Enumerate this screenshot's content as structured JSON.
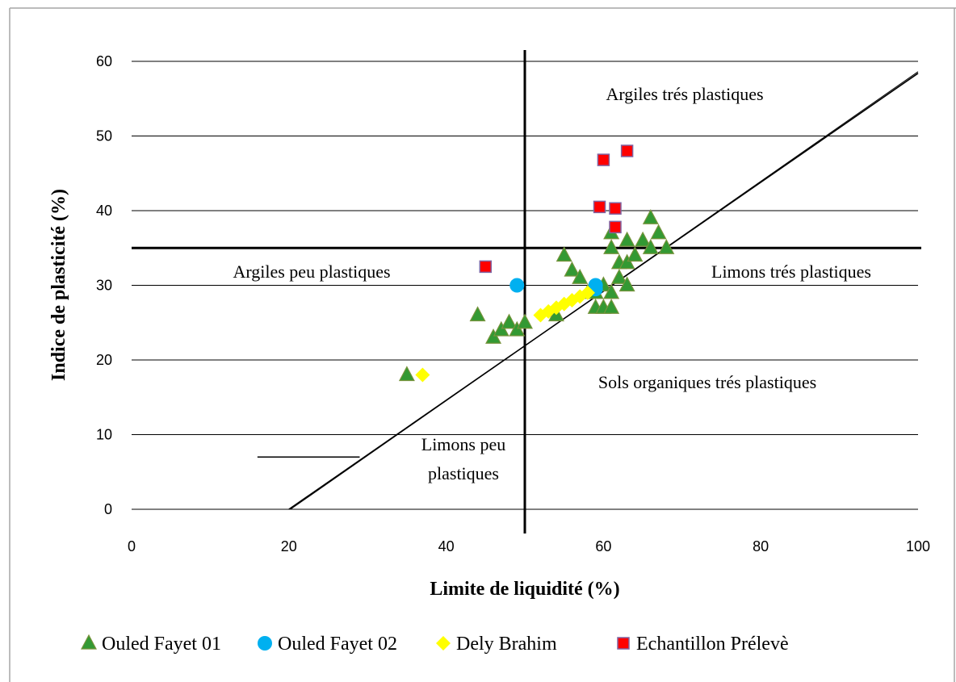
{
  "chart_data": {
    "type": "scatter",
    "title": "",
    "xlabel": "Limite de liquidité (%)",
    "ylabel": "Indice de plasticité (%)",
    "xlim": [
      0,
      100
    ],
    "ylim": [
      0,
      60
    ],
    "x_ticks": [
      0,
      20,
      40,
      60,
      80,
      100
    ],
    "y_ticks": [
      0,
      10,
      20,
      30,
      40,
      50,
      60
    ],
    "grid": "horizontal",
    "legend_position": "bottom",
    "a_line": {
      "x1": 20,
      "y1": 0,
      "x2": 100,
      "y2": 58.4
    },
    "a_line_short": {
      "x1": 16,
      "y1": 7,
      "x2": 29,
      "y2": 7
    },
    "ll_boundary": 50,
    "ip_boundary": 35,
    "region_labels": {
      "top": "Argiles trés plastiques",
      "left": "Argiles peu plastiques",
      "right": "Limons trés plastiques",
      "bottom_right": "Sols organiques trés plastiques",
      "bottom_left_line1": "Limons peu",
      "bottom_left_line2": "plastiques"
    },
    "series": [
      {
        "name": "Ouled Fayet 01",
        "marker": "triangle",
        "color": "#339933",
        "stroke": "#77933c",
        "points": [
          [
            35,
            18
          ],
          [
            44,
            26
          ],
          [
            46,
            23
          ],
          [
            47,
            24
          ],
          [
            48,
            25
          ],
          [
            49,
            24
          ],
          [
            50,
            25
          ],
          [
            54,
            26
          ],
          [
            55,
            34
          ],
          [
            56,
            32
          ],
          [
            57,
            31
          ],
          [
            58,
            29
          ],
          [
            59,
            27
          ],
          [
            59,
            29
          ],
          [
            60,
            27
          ],
          [
            60,
            30
          ],
          [
            61,
            27
          ],
          [
            61,
            29
          ],
          [
            61,
            35
          ],
          [
            61,
            37
          ],
          [
            62,
            31
          ],
          [
            62,
            33
          ],
          [
            63,
            30
          ],
          [
            63,
            33
          ],
          [
            63,
            36
          ],
          [
            64,
            34
          ],
          [
            65,
            36
          ],
          [
            66,
            35
          ],
          [
            66,
            39
          ],
          [
            67,
            37
          ],
          [
            68,
            35
          ]
        ]
      },
      {
        "name": "Ouled Fayet 02",
        "marker": "circle",
        "color": "#00b0f0",
        "points": [
          [
            49,
            30
          ],
          [
            59,
            29.5
          ],
          [
            59,
            30
          ]
        ]
      },
      {
        "name": "Dely Brahim",
        "marker": "diamond",
        "color": "#ffff00",
        "points": [
          [
            37,
            18
          ],
          [
            52,
            26
          ],
          [
            53,
            26.5
          ],
          [
            54,
            27
          ],
          [
            55,
            27.5
          ],
          [
            56,
            28
          ],
          [
            57,
            28.5
          ],
          [
            58,
            29
          ]
        ]
      },
      {
        "name": "Echantillon Prélevè",
        "marker": "square",
        "color": "#ff0000",
        "stroke": "#8064a2",
        "points": [
          [
            45,
            32.5
          ],
          [
            59.5,
            40.5
          ],
          [
            60,
            46.8
          ],
          [
            61.5,
            37.8
          ],
          [
            61.5,
            40.3
          ],
          [
            63,
            48
          ]
        ]
      }
    ]
  }
}
